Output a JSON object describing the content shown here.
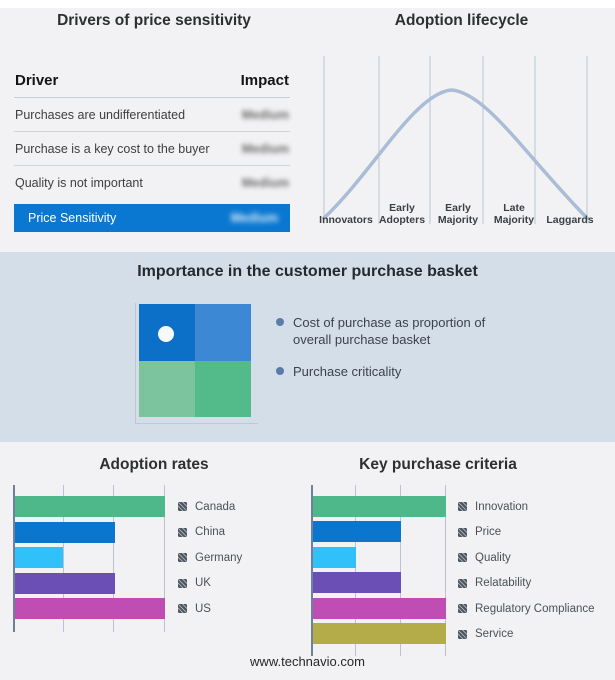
{
  "drivers_table": {
    "title": "Drivers of price sensitivity",
    "columns": {
      "driver": "Driver",
      "impact": "Impact"
    },
    "impact_obscured": true,
    "rows": [
      {
        "label": "Purchases are undifferentiated",
        "impact": "Medium"
      },
      {
        "label": "Purchase is a key cost to the buyer",
        "impact": "Medium"
      },
      {
        "label": "Quality is not important",
        "impact": "Medium"
      }
    ],
    "highlight_row": {
      "label": "Price Sensitivity",
      "impact": "Medium",
      "background": "#0a78d1"
    }
  },
  "basket": {
    "title": "Importance in the customer purchase basket",
    "bullets": [
      "Cost of purchase as proportion of overall purchase basket",
      "Purchase criticality"
    ],
    "bullet_color": "#5b7ca9",
    "band_background": "#d4dee9",
    "quadrant_colors": {
      "top_left": "#0c70c9",
      "top_right": "#3c88d5",
      "bottom_left": "#7cc49e",
      "bottom_right": "#53ba8a"
    }
  },
  "chart_data": [
    {
      "id": "lifecycle",
      "type": "line",
      "title": "Adoption lifecycle",
      "categories": [
        "Innovators",
        "Early Adopters",
        "Early Majority",
        "Late Majority",
        "Laggards"
      ],
      "curve_shape": "bell",
      "peak_category": "Early Majority",
      "line_color": "#a9bdd6",
      "grid": "vertical-dividers"
    },
    {
      "id": "adoption-rates",
      "type": "bar",
      "orientation": "horizontal",
      "title": "Adoption rates",
      "categories": [
        "Canada",
        "China",
        "Germany",
        "UK",
        "US"
      ],
      "values": [
        100,
        67,
        33,
        67,
        100
      ],
      "colors": [
        "#4eb88b",
        "#0a76cd",
        "#30c1fa",
        "#6b4fb4",
        "#c04db4"
      ],
      "xlim": [
        0,
        100
      ],
      "xticks": [
        0,
        33.3,
        66.7,
        100
      ],
      "grid": true,
      "legend_position": "right",
      "legend_swatch": "hatched-gray"
    },
    {
      "id": "key-purchase-criteria",
      "type": "bar",
      "orientation": "horizontal",
      "title": "Key purchase criteria",
      "categories": [
        "Innovation",
        "Price",
        "Quality",
        "Relatability",
        "Regulatory Compliance",
        "Service"
      ],
      "values": [
        100,
        67,
        33,
        67,
        100,
        100
      ],
      "colors": [
        "#4eb88b",
        "#0a76cd",
        "#30c1fa",
        "#6b4fb4",
        "#c04db4",
        "#b4ab49"
      ],
      "xlim": [
        0,
        100
      ],
      "xticks": [
        0,
        33.3,
        66.7,
        100
      ],
      "grid": true,
      "legend_position": "right",
      "legend_swatch": "hatched-gray"
    }
  ],
  "footer": {
    "url_label": "www.technavio.com"
  }
}
